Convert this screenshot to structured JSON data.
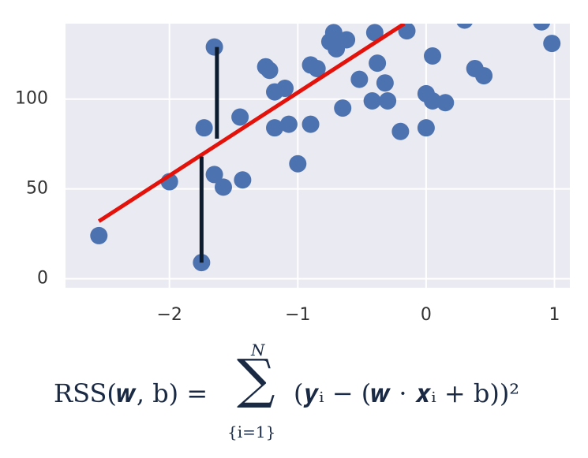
{
  "chart_data": {
    "type": "scatter",
    "xlim": [
      -2.81,
      1.12
    ],
    "ylim": [
      -5,
      142
    ],
    "xticks": [
      {
        "value": -2,
        "label": "−2"
      },
      {
        "value": -1,
        "label": "−1"
      },
      0,
      1
    ],
    "yticks": [
      0,
      50,
      100
    ],
    "grid": true,
    "background": "#eaeaf2",
    "series": [
      {
        "color": "#4c72b0",
        "x": [
          -2.55,
          -2.0,
          -1.75,
          -1.73,
          -1.65,
          -1.65,
          -1.58,
          -1.45,
          -1.43,
          -1.25,
          -1.22,
          -1.18,
          -1.18,
          -1.1,
          -1.07,
          -1.0,
          -0.9,
          -0.9,
          -0.85,
          -0.75,
          -0.72,
          -0.7,
          -0.65,
          -0.62,
          -0.52,
          -0.42,
          -0.4,
          -0.38,
          -0.32,
          -0.3,
          -0.2,
          -0.15,
          0.0,
          0.0,
          0.05,
          0.05,
          0.15,
          0.3,
          0.38,
          0.45,
          0.9,
          0.98
        ],
        "y": [
          24,
          54,
          9,
          84,
          129,
          58,
          51,
          90,
          55,
          118,
          116,
          104,
          84,
          106,
          86,
          64,
          86,
          119,
          117,
          132,
          137,
          128,
          95,
          133,
          111,
          99,
          137,
          120,
          109,
          99,
          82,
          138,
          103,
          84,
          124,
          99,
          98,
          144,
          117,
          113,
          143,
          131
        ]
      }
    ],
    "regression": {
      "color": "#e3120b",
      "x": [
        -2.55,
        -0.17
      ],
      "y": [
        32,
        142
      ]
    },
    "residuals": {
      "color": "#0d1b2e",
      "items": [
        {
          "x": -1.63,
          "y_top": 129,
          "y_bottom": 78
        },
        {
          "x": -1.75,
          "y_top": 68,
          "y_bottom": 9
        }
      ]
    }
  },
  "formula": {
    "lhs": "RSS(𝒘, b) =",
    "sum": "∑",
    "upper": "N",
    "lower": "{i=1}",
    "rhs": "(𝒚ᵢ − (𝒘 · 𝒙ᵢ + b))²"
  }
}
